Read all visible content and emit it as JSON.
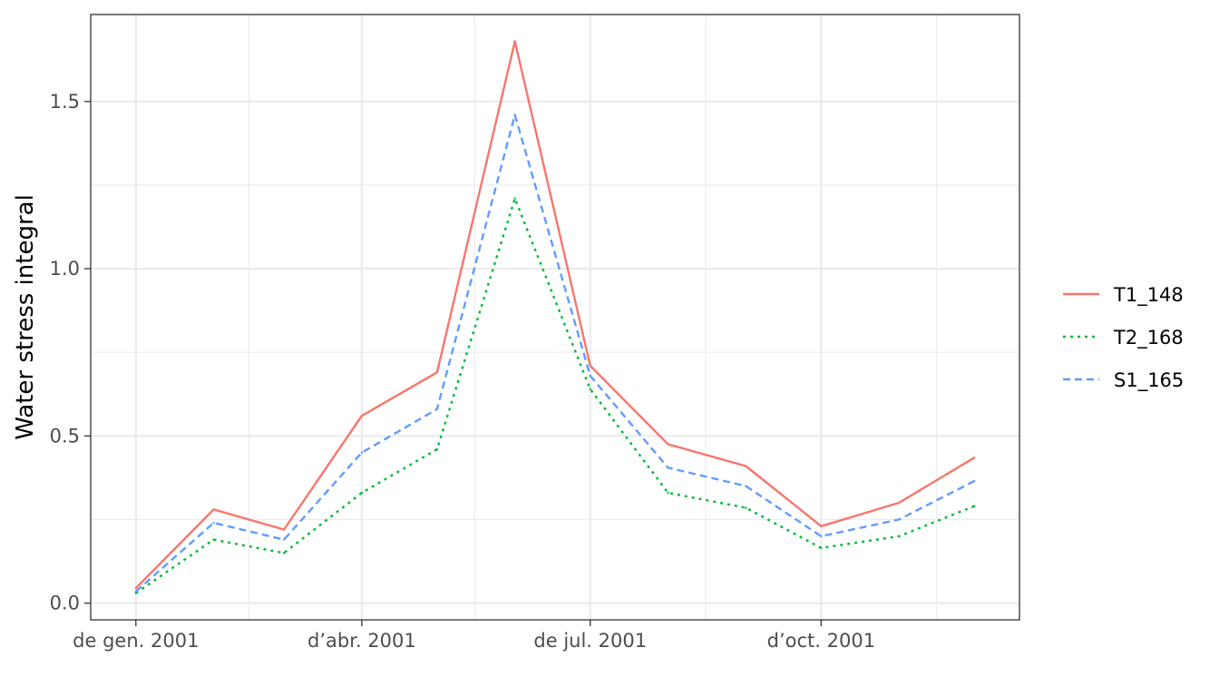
{
  "chart_data": {
    "type": "line",
    "title": "",
    "xlabel": "",
    "ylabel": "Water stress integral",
    "x": [
      "2001-01-01",
      "2001-02-01",
      "2001-03-01",
      "2001-04-01",
      "2001-05-01",
      "2001-06-01",
      "2001-07-01",
      "2001-08-01",
      "2001-09-01",
      "2001-10-01",
      "2001-11-01",
      "2001-12-01"
    ],
    "x_ticks": [
      {
        "date": "2001-01-01",
        "label": "de gen. 2001"
      },
      {
        "date": "2001-04-01",
        "label": "d’abr. 2001"
      },
      {
        "date": "2001-07-01",
        "label": "de jul. 2001"
      },
      {
        "date": "2001-10-01",
        "label": "d’oct. 2001"
      }
    ],
    "xlim": [
      "2000-12-14",
      "2001-12-19"
    ],
    "ylim": [
      -0.05,
      1.76
    ],
    "y_ticks": [
      0.0,
      0.5,
      1.0,
      1.5
    ],
    "y_tick_labels": [
      "0.0",
      "0.5",
      "1.0",
      "1.5"
    ],
    "grid": true,
    "legend_position": "right",
    "series": [
      {
        "name": "T1_148",
        "color": "#F8766D",
        "dash": "solid",
        "values": [
          0.045,
          0.28,
          0.22,
          0.56,
          0.69,
          1.68,
          0.71,
          0.475,
          0.41,
          0.23,
          0.3,
          0.435
        ]
      },
      {
        "name": "T2_168",
        "color": "#00BA38",
        "dash": "dotted",
        "values": [
          0.03,
          0.19,
          0.15,
          0.33,
          0.46,
          1.21,
          0.64,
          0.33,
          0.285,
          0.165,
          0.2,
          0.29
        ]
      },
      {
        "name": "S1_165",
        "color": "#619CFF",
        "dash": "dashed",
        "values": [
          0.035,
          0.24,
          0.19,
          0.45,
          0.58,
          1.46,
          0.68,
          0.405,
          0.35,
          0.2,
          0.25,
          0.365
        ]
      }
    ]
  }
}
